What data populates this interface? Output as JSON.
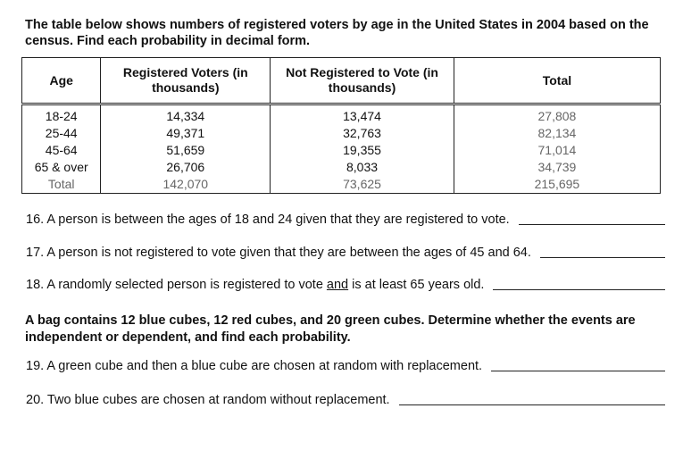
{
  "intro": "The table below shows numbers of registered voters by age in the United States in 2004 based on the census. Find each probability in decimal form.",
  "table": {
    "header": [
      "Age",
      "Registered Voters (in thousands)",
      "Not Registered to Vote (in thousands)",
      "Total"
    ],
    "rows": [
      [
        "18-24",
        "14,334",
        "13,474",
        "27,808"
      ],
      [
        "25-44",
        "49,371",
        "32,763",
        "82,134"
      ],
      [
        "45-64",
        "51,659",
        "19,355",
        "71,014"
      ],
      [
        "65 & over",
        "26,706",
        "8,033",
        "34,739"
      ],
      [
        "Total",
        "142,070",
        "73,625",
        "215,695"
      ]
    ]
  },
  "questions": [
    {
      "parts": [
        "16. A person is between the ages of 18 and 24 given that they are registered to vote."
      ]
    },
    {
      "parts": [
        "17. A person is not registered to vote given that they are between the ages of 45 and 64."
      ]
    },
    {
      "parts": [
        "18. A randomly selected person is registered to vote",
        "and",
        "is at least 65 years old."
      ]
    },
    {
      "parts": [
        "19. A green cube and then a blue cube are chosen at random with replacement."
      ]
    },
    {
      "parts": [
        "20. Two blue cubes are chosen at random without replacement."
      ]
    }
  ],
  "bag_text": "A bag contains 12 blue cubes, 12 red cubes, and 20 green cubes.  Determine whether the events are independent or dependent, and find each probability."
}
